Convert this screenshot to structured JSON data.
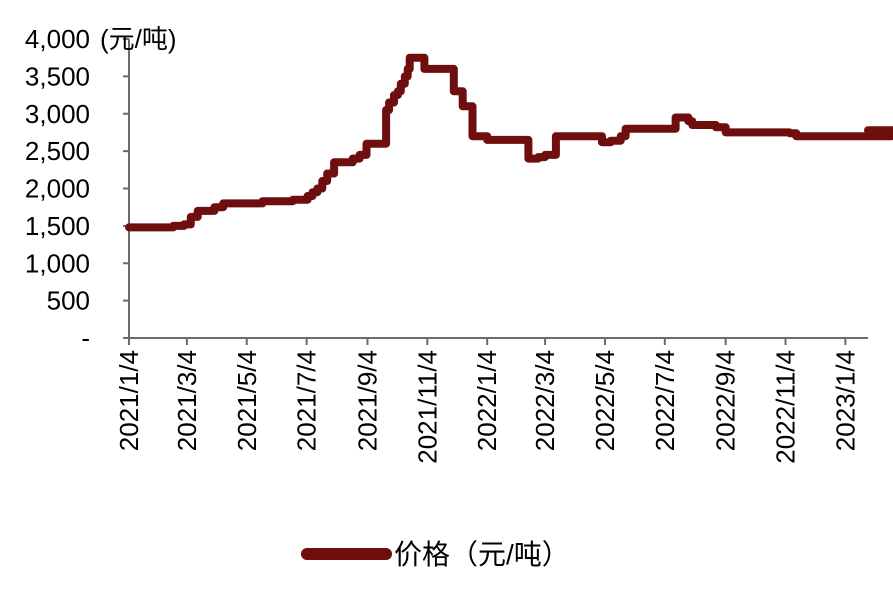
{
  "chart_data": {
    "type": "line",
    "title": "",
    "xlabel": "",
    "ylabel": "(元/吨)",
    "ylim": [
      0,
      4000
    ],
    "yticks": [
      {
        "value": 0,
        "label": "-"
      },
      {
        "value": 500,
        "label": "500"
      },
      {
        "value": 1000,
        "label": "1,000"
      },
      {
        "value": 1500,
        "label": "1,500"
      },
      {
        "value": 2000,
        "label": "2,000"
      },
      {
        "value": 2500,
        "label": "2,500"
      },
      {
        "value": 3000,
        "label": "3,000"
      },
      {
        "value": 3500,
        "label": "3,500"
      },
      {
        "value": 4000,
        "label": "4,000"
      }
    ],
    "xticks": [
      "2021/1/4",
      "2021/3/4",
      "2021/5/4",
      "2021/7/4",
      "2021/9/4",
      "2021/11/4",
      "2022/1/4",
      "2022/3/4",
      "2022/5/4",
      "2022/7/4",
      "2022/9/4",
      "2022/11/4",
      "2023/1/4"
    ],
    "grid": false,
    "legend_position": "bottom",
    "color": "#6E0E0E",
    "series": [
      {
        "name": "价格（元/吨）",
        "step": true,
        "x": [
          "2021/1/4",
          "2021/2/1",
          "2021/2/18",
          "2021/3/1",
          "2021/3/8",
          "2021/3/15",
          "2021/4/1",
          "2021/4/10",
          "2021/5/20",
          "2021/6/20",
          "2021/7/5",
          "2021/7/10",
          "2021/7/15",
          "2021/7/20",
          "2021/7/25",
          "2021/8/1",
          "2021/8/20",
          "2021/8/27",
          "2021/9/3",
          "2021/9/5",
          "2021/9/20",
          "2021/9/23",
          "2021/9/26",
          "2021/10/1",
          "2021/10/5",
          "2021/10/8",
          "2021/10/12",
          "2021/10/15",
          "2021/10/17",
          "2021/10/25",
          "2021/11/1",
          "2021/11/20",
          "2021/12/1",
          "2021/12/10",
          "2021/12/20",
          "2022/1/4",
          "2022/2/15",
          "2022/2/25",
          "2022/3/4",
          "2022/3/15",
          "2022/5/1",
          "2022/5/10",
          "2022/5/20",
          "2022/5/25",
          "2022/6/10",
          "2022/7/15",
          "2022/7/20",
          "2022/7/28",
          "2022/8/1",
          "2022/8/10",
          "2022/8/25",
          "2022/9/4",
          "2022/10/4",
          "2022/11/1",
          "2022/11/8",
          "2022/11/15",
          "2023/2/10",
          "2023/2/20",
          "2023/3/1"
        ],
        "y": [
          1480,
          1480,
          1500,
          1520,
          1620,
          1700,
          1750,
          1800,
          1830,
          1850,
          1900,
          1950,
          2000,
          2100,
          2200,
          2350,
          2400,
          2450,
          2600,
          2600,
          2600,
          3050,
          3150,
          3250,
          3300,
          3400,
          3500,
          3600,
          3750,
          3750,
          3600,
          3600,
          3300,
          3100,
          2700,
          2650,
          2400,
          2420,
          2450,
          2700,
          2620,
          2640,
          2700,
          2800,
          2800,
          2950,
          2950,
          2900,
          2850,
          2850,
          2820,
          2750,
          2750,
          2750,
          2740,
          2700,
          2700,
          2780,
          2780
        ]
      }
    ]
  }
}
